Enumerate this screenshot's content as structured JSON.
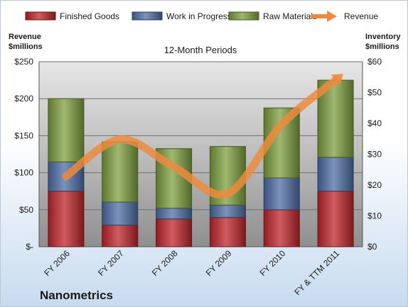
{
  "chart_data": {
    "type": "bar",
    "stacked": true,
    "subtitle": "12-Month Periods",
    "company": "Nanometrics",
    "left_axis_title": [
      "Revenue",
      "$millions"
    ],
    "right_axis_title": [
      "Inventory",
      "$millions"
    ],
    "categories": [
      "FY 2006",
      "FY 2007",
      "FY 2008",
      "FY 2009",
      "FY 2010",
      "FY & TTM 2011"
    ],
    "series": [
      {
        "name": "Finished Goods",
        "color": "#c0262c",
        "values": [
          18,
          7,
          9,
          9.5,
          12,
          18
        ]
      },
      {
        "name": "Work in Progress",
        "color": "#4f6fa6",
        "values": [
          9.5,
          7.5,
          3.5,
          4,
          10.3,
          11
        ]
      },
      {
        "name": "Raw Materials",
        "color": "#7fa040",
        "values": [
          20.5,
          19.5,
          19.3,
          19,
          22.7,
          25
        ]
      }
    ],
    "line": {
      "name": "Revenue",
      "color": "#ed8b3d",
      "values": [
        95,
        145,
        108,
        72,
        165,
        225
      ]
    },
    "left_ylim": [
      0,
      250
    ],
    "left_ticks": [
      0,
      50,
      100,
      150,
      200,
      250
    ],
    "left_tick_labels": [
      "$-",
      "$50",
      "$100",
      "$150",
      "$200",
      "$250"
    ],
    "right_ylim": [
      0,
      60
    ],
    "right_ticks": [
      0,
      10,
      20,
      30,
      40,
      50,
      60
    ],
    "right_tick_labels": [
      "$0",
      "$10",
      "$20",
      "$30",
      "$40",
      "$50",
      "$60"
    ],
    "grid": true,
    "legend_position": "top"
  }
}
